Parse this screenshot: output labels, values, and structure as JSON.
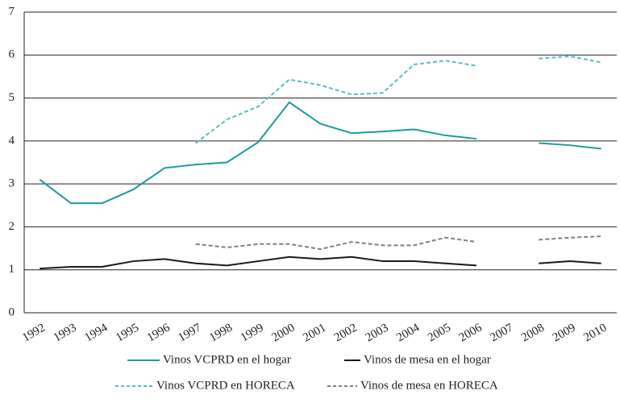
{
  "chart_data": {
    "type": "line",
    "categories": [
      "1992",
      "1993",
      "1994",
      "1995",
      "1996",
      "1997",
      "1998",
      "1999",
      "2000",
      "2001",
      "2002",
      "2003",
      "2004",
      "2005",
      "2006",
      "2007",
      "2008",
      "2009",
      "2010"
    ],
    "series": [
      {
        "name": "Vinos VCPRD en el hogar",
        "color": "#1f9a9a",
        "dashed": false,
        "values": [
          3.1,
          2.55,
          2.55,
          2.87,
          3.37,
          3.45,
          3.5,
          3.97,
          4.9,
          4.4,
          4.18,
          4.22,
          4.27,
          4.13,
          4.05,
          null,
          3.95,
          3.9,
          3.82
        ]
      },
      {
        "name": "Vinos de mesa en el hogar",
        "color": "#1a1a1a",
        "dashed": false,
        "values": [
          1.03,
          1.07,
          1.07,
          1.2,
          1.25,
          1.15,
          1.1,
          1.2,
          1.3,
          1.25,
          1.3,
          1.2,
          1.2,
          1.15,
          1.1,
          null,
          1.15,
          1.2,
          1.15
        ]
      },
      {
        "name": "Vinos VCPRD en HORECA",
        "color": "#5bbcc0",
        "dashed": true,
        "values": [
          null,
          null,
          null,
          null,
          null,
          3.95,
          4.5,
          4.8,
          5.43,
          5.3,
          5.08,
          5.12,
          5.78,
          5.87,
          5.75,
          null,
          5.92,
          5.97,
          5.83
        ]
      },
      {
        "name": "Vinos de mesa en HORECA",
        "color": "#808080",
        "dashed": true,
        "values": [
          null,
          null,
          null,
          null,
          null,
          1.6,
          1.52,
          1.6,
          1.6,
          1.48,
          1.65,
          1.57,
          1.57,
          1.75,
          1.65,
          null,
          1.7,
          1.75,
          1.78
        ]
      }
    ],
    "ylim": [
      0,
      7
    ],
    "yticks": [
      0,
      1,
      2,
      3,
      4,
      5,
      6,
      7
    ],
    "grid": true
  }
}
